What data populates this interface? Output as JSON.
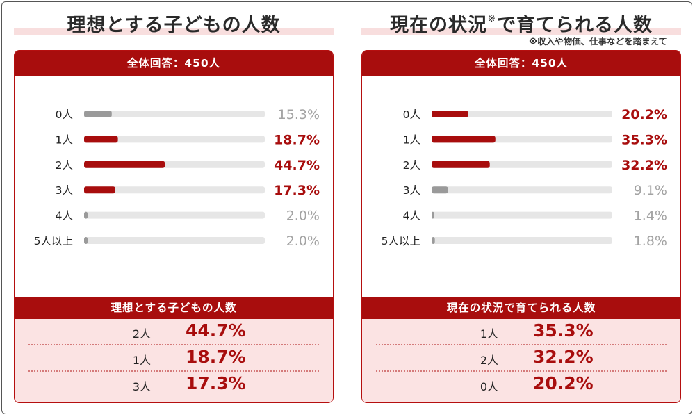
{
  "colors": {
    "accent": "#a80d0d",
    "gray_bar": "#9a9a9a",
    "track": "#e6e6e6",
    "gray_text": "#a3a3a3",
    "summary_bg": "#fbe3e3",
    "title_band": "#f8dede"
  },
  "left": {
    "title": "理想とする子どもの人数",
    "panel_header": "全体回答：450人",
    "summary_title": "理想とする子どもの人数",
    "summary_rows": [
      {
        "label": "2人",
        "value": "44.7%"
      },
      {
        "label": "1人",
        "value": "18.7%"
      },
      {
        "label": "3人",
        "value": "17.3%"
      }
    ]
  },
  "right": {
    "title_main": "現在の状況",
    "title_mark": "※",
    "title_rest": "で育てられる人数",
    "note": "※収入や物価、仕事などを踏まえて",
    "panel_header": "全体回答：450人",
    "summary_title": "現在の状況で育てられる人数",
    "summary_rows": [
      {
        "label": "1人",
        "value": "35.3%"
      },
      {
        "label": "2人",
        "value": "32.2%"
      },
      {
        "label": "0人",
        "value": "20.2%"
      }
    ]
  },
  "chart_data": [
    {
      "type": "bar",
      "orientation": "horizontal",
      "title": "理想とする子どもの人数",
      "categories": [
        "0人",
        "1人",
        "2人",
        "3人",
        "4人",
        "5人以上"
      ],
      "values": [
        15.3,
        18.7,
        44.7,
        17.3,
        2.0,
        2.0
      ],
      "value_labels": [
        "15.3%",
        "18.7%",
        "44.7%",
        "17.3%",
        "2.0%",
        "2.0%"
      ],
      "highlighted": [
        false,
        true,
        true,
        true,
        false,
        false
      ],
      "xlim": [
        0,
        100
      ],
      "grid": false
    },
    {
      "type": "bar",
      "orientation": "horizontal",
      "title": "現在の状況で育てられる人数",
      "categories": [
        "0人",
        "1人",
        "2人",
        "3人",
        "4人",
        "5人以上"
      ],
      "values": [
        20.2,
        35.3,
        32.2,
        9.1,
        1.4,
        1.8
      ],
      "value_labels": [
        "20.2%",
        "35.3%",
        "32.2%",
        "9.1%",
        "1.4%",
        "1.8%"
      ],
      "highlighted": [
        true,
        true,
        true,
        false,
        false,
        false
      ],
      "xlim": [
        0,
        100
      ],
      "grid": false
    }
  ]
}
